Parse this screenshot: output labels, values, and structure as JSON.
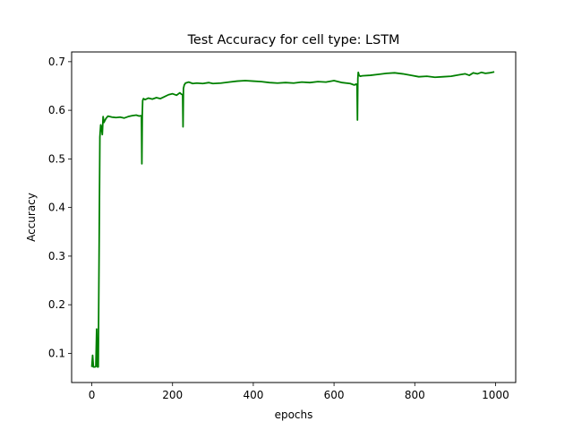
{
  "chart_data": {
    "type": "line",
    "title": "Test Accuracy for cell type: LSTM",
    "xlabel": "epochs",
    "ylabel": "Accuracy",
    "xlim": [
      -50,
      1050
    ],
    "ylim": [
      0.04,
      0.72
    ],
    "xticks": [
      0,
      200,
      400,
      600,
      800,
      1000
    ],
    "yticks": [
      0.1,
      0.2,
      0.3,
      0.4,
      0.5,
      0.6,
      0.7
    ],
    "grid": false,
    "legend": "none",
    "series": [
      {
        "color": "#008000",
        "x": [
          0,
          2,
          4,
          8,
          10,
          12,
          14,
          16,
          18,
          20,
          22,
          24,
          26,
          28,
          30,
          35,
          40,
          50,
          60,
          70,
          80,
          90,
          100,
          110,
          118,
          121,
          123,
          124,
          125,
          126,
          128,
          132,
          140,
          150,
          160,
          170,
          180,
          190,
          200,
          210,
          218,
          222,
          225,
          226,
          227,
          229,
          232,
          240,
          250,
          260,
          275,
          290,
          300,
          320,
          340,
          360,
          380,
          400,
          420,
          440,
          460,
          480,
          500,
          520,
          540,
          560,
          580,
          600,
          620,
          640,
          650,
          655,
          657,
          658,
          659,
          660,
          662,
          665,
          670,
          690,
          710,
          730,
          750,
          770,
          790,
          810,
          830,
          850,
          870,
          890,
          910,
          925,
          935,
          945,
          955,
          965,
          975,
          985,
          997
        ],
        "y": [
          0.072,
          0.096,
          0.072,
          0.072,
          0.073,
          0.15,
          0.072,
          0.072,
          0.3,
          0.545,
          0.57,
          0.565,
          0.55,
          0.587,
          0.575,
          0.583,
          0.588,
          0.586,
          0.585,
          0.586,
          0.584,
          0.587,
          0.589,
          0.59,
          0.588,
          0.589,
          0.588,
          0.49,
          0.59,
          0.62,
          0.624,
          0.622,
          0.625,
          0.623,
          0.626,
          0.624,
          0.628,
          0.632,
          0.634,
          0.631,
          0.636,
          0.633,
          0.632,
          0.566,
          0.645,
          0.652,
          0.656,
          0.658,
          0.655,
          0.656,
          0.655,
          0.657,
          0.655,
          0.656,
          0.658,
          0.66,
          0.661,
          0.66,
          0.659,
          0.657,
          0.656,
          0.657,
          0.656,
          0.658,
          0.657,
          0.659,
          0.658,
          0.661,
          0.657,
          0.655,
          0.652,
          0.654,
          0.651,
          0.58,
          0.665,
          0.678,
          0.672,
          0.67,
          0.671,
          0.672,
          0.674,
          0.676,
          0.677,
          0.675,
          0.672,
          0.669,
          0.67,
          0.668,
          0.669,
          0.67,
          0.673,
          0.675,
          0.672,
          0.677,
          0.675,
          0.678,
          0.676,
          0.677,
          0.679
        ]
      }
    ]
  }
}
